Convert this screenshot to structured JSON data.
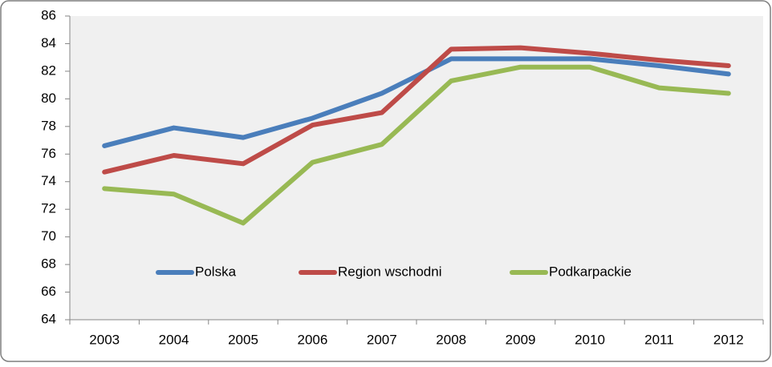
{
  "chart_data": {
    "type": "line",
    "categories": [
      "2003",
      "2004",
      "2005",
      "2006",
      "2007",
      "2008",
      "2009",
      "2010",
      "2011",
      "2012"
    ],
    "series": [
      {
        "name": "Polska",
        "color": "#4a7ebb",
        "values": [
          76.6,
          77.9,
          77.2,
          78.6,
          80.4,
          82.9,
          82.9,
          82.9,
          82.4,
          81.8
        ]
      },
      {
        "name": "Region wschodni",
        "color": "#be4b48",
        "values": [
          74.7,
          75.9,
          75.3,
          78.1,
          79.0,
          83.6,
          83.7,
          83.3,
          82.8,
          82.4
        ]
      },
      {
        "name": "Podkarpackie",
        "color": "#98b954",
        "values": [
          73.5,
          73.1,
          71.0,
          75.4,
          76.7,
          81.3,
          82.3,
          82.3,
          80.8,
          80.4
        ]
      }
    ],
    "ylim": [
      64,
      86
    ],
    "yticks": [
      64,
      66,
      68,
      70,
      72,
      74,
      76,
      78,
      80,
      82,
      84,
      86
    ],
    "grid": false
  }
}
